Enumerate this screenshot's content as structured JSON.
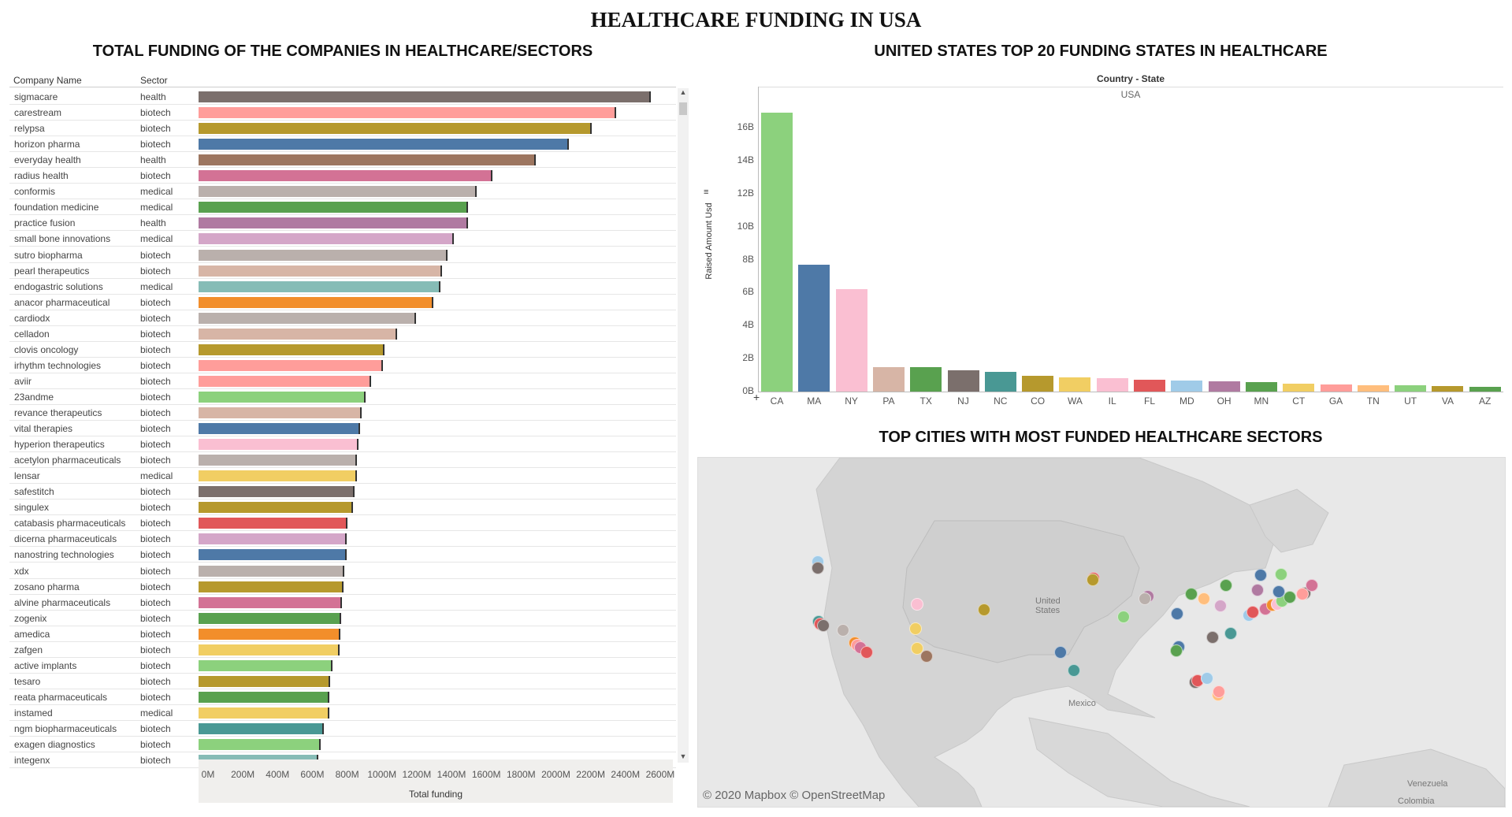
{
  "title": "HEALTHCARE FUNDING IN USA",
  "left_panel": {
    "title": "TOTAL FUNDING OF THE COMPANIES IN HEALTHCARE/SECTORS",
    "col_company": "Company Name",
    "col_sector": "Sector",
    "axis_title": "Total funding",
    "axis_ticks": [
      "0M",
      "200M",
      "400M",
      "600M",
      "800M",
      "1000M",
      "1200M",
      "1400M",
      "1600M",
      "1800M",
      "2000M",
      "2200M",
      "2400M",
      "2600M"
    ]
  },
  "right_top": {
    "title": "UNITED STATES TOP 20 FUNDING STATES IN HEALTHCARE",
    "header": "Country - State",
    "subheader": "USA",
    "y_axis_title": "Raised Amount Usd",
    "y_ticks": [
      "0B",
      "2B",
      "4B",
      "6B",
      "8B",
      "10B",
      "12B",
      "14B",
      "16B"
    ]
  },
  "right_bottom": {
    "title": "TOP CITIES WITH MOST FUNDED HEALTHCARE SECTORS",
    "attribution": "© 2020 Mapbox © OpenStreetMap",
    "label_us": "United States",
    "label_mexico": "Mexico",
    "label_venezuela": "Venezuela",
    "label_colombia": "Colombia"
  },
  "chart_data": [
    {
      "type": "bar",
      "orientation": "horizontal",
      "title": "TOTAL FUNDING OF THE COMPANIES IN HEALTHCARE/SECTORS",
      "xlabel": "Total funding",
      "xlim": [
        0,
        2700
      ],
      "unit": "M",
      "rows": [
        {
          "company": "sigmacare",
          "sector": "health",
          "value": 2600,
          "color": "#7b6f6c"
        },
        {
          "company": "carestream",
          "sector": "biotech",
          "value": 2400,
          "color": "#ff9d9a"
        },
        {
          "company": "relypsa",
          "sector": "biotech",
          "value": 2260,
          "color": "#b6992d"
        },
        {
          "company": "horizon pharma",
          "sector": "biotech",
          "value": 2130,
          "color": "#4e79a7"
        },
        {
          "company": "everyday health",
          "sector": "health",
          "value": 1940,
          "color": "#9d7660"
        },
        {
          "company": "radius health",
          "sector": "biotech",
          "value": 1690,
          "color": "#d37295"
        },
        {
          "company": "conformis",
          "sector": "medical",
          "value": 1600,
          "color": "#bab0ac"
        },
        {
          "company": "foundation medicine",
          "sector": "medical",
          "value": 1550,
          "color": "#59a14f"
        },
        {
          "company": "practice fusion",
          "sector": "health",
          "value": 1550,
          "color": "#b07aa1"
        },
        {
          "company": "small bone innovations",
          "sector": "medical",
          "value": 1470,
          "color": "#d4a6c8"
        },
        {
          "company": "sutro biopharma",
          "sector": "biotech",
          "value": 1430,
          "color": "#bab0ac"
        },
        {
          "company": "pearl therapeutics",
          "sector": "biotech",
          "value": 1400,
          "color": "#d7b5a6"
        },
        {
          "company": "endogastric solutions",
          "sector": "medical",
          "value": 1390,
          "color": "#86bcb6"
        },
        {
          "company": "anacor pharmaceutical",
          "sector": "biotech",
          "value": 1350,
          "color": "#f28e2b"
        },
        {
          "company": "cardiodx",
          "sector": "biotech",
          "value": 1250,
          "color": "#bab0ac"
        },
        {
          "company": "celladon",
          "sector": "biotech",
          "value": 1140,
          "color": "#d7b5a6"
        },
        {
          "company": "clovis oncology",
          "sector": "biotech",
          "value": 1070,
          "color": "#b6992d"
        },
        {
          "company": "irhythm technologies",
          "sector": "biotech",
          "value": 1060,
          "color": "#ff9d9a"
        },
        {
          "company": "aviir",
          "sector": "biotech",
          "value": 990,
          "color": "#ff9d9a"
        },
        {
          "company": "23andme",
          "sector": "biotech",
          "value": 960,
          "color": "#8cd17d"
        },
        {
          "company": "revance therapeutics",
          "sector": "biotech",
          "value": 940,
          "color": "#d7b5a6"
        },
        {
          "company": "vital therapies",
          "sector": "biotech",
          "value": 930,
          "color": "#4e79a7"
        },
        {
          "company": "hyperion therapeutics",
          "sector": "biotech",
          "value": 920,
          "color": "#fabfd2"
        },
        {
          "company": "acetylon pharmaceuticals",
          "sector": "biotech",
          "value": 910,
          "color": "#bab0ac"
        },
        {
          "company": "lensar",
          "sector": "medical",
          "value": 910,
          "color": "#f1ce63"
        },
        {
          "company": "safestitch",
          "sector": "biotech",
          "value": 895,
          "color": "#7b6f6c"
        },
        {
          "company": "singulex",
          "sector": "biotech",
          "value": 890,
          "color": "#b6992d"
        },
        {
          "company": "catabasis pharmaceuticals",
          "sector": "biotech",
          "value": 855,
          "color": "#e15759"
        },
        {
          "company": "dicerna pharmaceuticals",
          "sector": "biotech",
          "value": 850,
          "color": "#d4a6c8"
        },
        {
          "company": "nanostring technologies",
          "sector": "biotech",
          "value": 850,
          "color": "#4e79a7"
        },
        {
          "company": "xdx",
          "sector": "biotech",
          "value": 840,
          "color": "#bab0ac"
        },
        {
          "company": "zosano pharma",
          "sector": "biotech",
          "value": 835,
          "color": "#b6992d"
        },
        {
          "company": "alvine pharmaceuticals",
          "sector": "biotech",
          "value": 825,
          "color": "#d37295"
        },
        {
          "company": "zogenix",
          "sector": "biotech",
          "value": 820,
          "color": "#59a14f"
        },
        {
          "company": "amedica",
          "sector": "biotech",
          "value": 815,
          "color": "#f28e2b"
        },
        {
          "company": "zafgen",
          "sector": "biotech",
          "value": 810,
          "color": "#f1ce63"
        },
        {
          "company": "active implants",
          "sector": "biotech",
          "value": 770,
          "color": "#8cd17d"
        },
        {
          "company": "tesaro",
          "sector": "biotech",
          "value": 755,
          "color": "#b6992d"
        },
        {
          "company": "reata pharmaceuticals",
          "sector": "biotech",
          "value": 750,
          "color": "#59a14f"
        },
        {
          "company": "instamed",
          "sector": "medical",
          "value": 750,
          "color": "#f1ce63"
        },
        {
          "company": "ngm biopharmaceuticals",
          "sector": "biotech",
          "value": 720,
          "color": "#499894"
        },
        {
          "company": "exagen diagnostics",
          "sector": "biotech",
          "value": 700,
          "color": "#8cd17d"
        },
        {
          "company": "integenx",
          "sector": "biotech",
          "value": 690,
          "color": "#86bcb6"
        }
      ]
    },
    {
      "type": "bar",
      "title": "UNITED STATES TOP 20 FUNDING STATES IN HEALTHCARE",
      "ylabel": "Raised Amount Usd",
      "unit": "B",
      "ylim": [
        0,
        18.5
      ],
      "categories": [
        "CA",
        "MA",
        "NY",
        "PA",
        "TX",
        "NJ",
        "NC",
        "CO",
        "WA",
        "IL",
        "FL",
        "MD",
        "OH",
        "MN",
        "CT",
        "GA",
        "TN",
        "UT",
        "VA",
        "AZ"
      ],
      "values": [
        16.9,
        7.7,
        6.2,
        1.5,
        1.5,
        1.3,
        1.2,
        0.95,
        0.85,
        0.8,
        0.7,
        0.65,
        0.6,
        0.55,
        0.5,
        0.45,
        0.4,
        0.38,
        0.35,
        0.3
      ],
      "colors": [
        "#8cd17d",
        "#4e79a7",
        "#fabfd2",
        "#d7b5a6",
        "#59a14f",
        "#7b6f6c",
        "#499894",
        "#b6992d",
        "#f1ce63",
        "#fabfd2",
        "#e15759",
        "#a0cbe8",
        "#b07aa1",
        "#59a14f",
        "#f1ce63",
        "#ff9d9a",
        "#ffbe7d",
        "#8cd17d",
        "#b6992d",
        "#59a14f"
      ]
    }
  ],
  "map_points": [
    {
      "lon": -122.4,
      "lat": 47.6,
      "color": "#a0cbe8"
    },
    {
      "lon": -122.4,
      "lat": 46.5,
      "color": "#7b6f6c"
    },
    {
      "lon": -122.3,
      "lat": 37.8,
      "color": "#499894"
    },
    {
      "lon": -122.1,
      "lat": 37.4,
      "color": "#e15759"
    },
    {
      "lon": -121.8,
      "lat": 37.2,
      "color": "#7b6f6c"
    },
    {
      "lon": -119.7,
      "lat": 36.4,
      "color": "#bab0ac"
    },
    {
      "lon": -118.5,
      "lat": 34.3,
      "color": "#f28e2b"
    },
    {
      "lon": -118.2,
      "lat": 34.0,
      "color": "#ff9d9a"
    },
    {
      "lon": -117.9,
      "lat": 33.6,
      "color": "#d37295"
    },
    {
      "lon": -117.2,
      "lat": 32.8,
      "color": "#e15759"
    },
    {
      "lon": -111.9,
      "lat": 40.7,
      "color": "#fabfd2"
    },
    {
      "lon": -112.1,
      "lat": 36.6,
      "color": "#f1ce63"
    },
    {
      "lon": -111.9,
      "lat": 33.4,
      "color": "#f1ce63"
    },
    {
      "lon": -110.9,
      "lat": 32.2,
      "color": "#9d7660"
    },
    {
      "lon": -104.9,
      "lat": 39.7,
      "color": "#b6992d"
    },
    {
      "lon": -96.8,
      "lat": 32.8,
      "color": "#4e79a7"
    },
    {
      "lon": -95.4,
      "lat": 29.8,
      "color": "#499894"
    },
    {
      "lon": -93.3,
      "lat": 44.9,
      "color": "#e15759"
    },
    {
      "lon": -93.4,
      "lat": 44.6,
      "color": "#b6992d"
    },
    {
      "lon": -90.2,
      "lat": 38.6,
      "color": "#8cd17d"
    },
    {
      "lon": -87.6,
      "lat": 41.9,
      "color": "#b07aa1"
    },
    {
      "lon": -87.9,
      "lat": 41.5,
      "color": "#bab0ac"
    },
    {
      "lon": -84.5,
      "lat": 39.1,
      "color": "#4e79a7"
    },
    {
      "lon": -83.0,
      "lat": 42.3,
      "color": "#59a14f"
    },
    {
      "lon": -81.7,
      "lat": 41.5,
      "color": "#ffbe7d"
    },
    {
      "lon": -80.0,
      "lat": 40.4,
      "color": "#d4a6c8"
    },
    {
      "lon": -84.4,
      "lat": 33.7,
      "color": "#4e79a7"
    },
    {
      "lon": -84.6,
      "lat": 33.0,
      "color": "#59a14f"
    },
    {
      "lon": -80.8,
      "lat": 35.2,
      "color": "#7b6f6c"
    },
    {
      "lon": -78.9,
      "lat": 35.9,
      "color": "#499894"
    },
    {
      "lon": -77.0,
      "lat": 38.9,
      "color": "#a0cbe8"
    },
    {
      "lon": -76.6,
      "lat": 39.3,
      "color": "#e15759"
    },
    {
      "lon": -75.2,
      "lat": 39.9,
      "color": "#d37295"
    },
    {
      "lon": -74.5,
      "lat": 40.5,
      "color": "#f28e2b"
    },
    {
      "lon": -74.0,
      "lat": 40.7,
      "color": "#fabfd2"
    },
    {
      "lon": -73.5,
      "lat": 41.2,
      "color": "#8cd17d"
    },
    {
      "lon": -72.7,
      "lat": 41.8,
      "color": "#59a14f"
    },
    {
      "lon": -71.1,
      "lat": 42.4,
      "color": "#7b6f6c"
    },
    {
      "lon": -71.3,
      "lat": 42.3,
      "color": "#ff9d9a"
    },
    {
      "lon": -73.8,
      "lat": 42.7,
      "color": "#4e79a7"
    },
    {
      "lon": -76.1,
      "lat": 43.0,
      "color": "#b07aa1"
    },
    {
      "lon": -70.3,
      "lat": 43.7,
      "color": "#d37295"
    },
    {
      "lon": -75.7,
      "lat": 45.4,
      "color": "#4e79a7"
    },
    {
      "lon": -79.4,
      "lat": 43.7,
      "color": "#59a14f"
    },
    {
      "lon": -73.6,
      "lat": 45.5,
      "color": "#8cd17d"
    },
    {
      "lon": -82.6,
      "lat": 27.9,
      "color": "#7b6f6c"
    },
    {
      "lon": -82.4,
      "lat": 28.1,
      "color": "#e15759"
    },
    {
      "lon": -80.2,
      "lat": 25.8,
      "color": "#ffbe7d"
    },
    {
      "lon": -80.1,
      "lat": 26.4,
      "color": "#ff9d9a"
    },
    {
      "lon": -81.4,
      "lat": 28.5,
      "color": "#a0cbe8"
    }
  ]
}
